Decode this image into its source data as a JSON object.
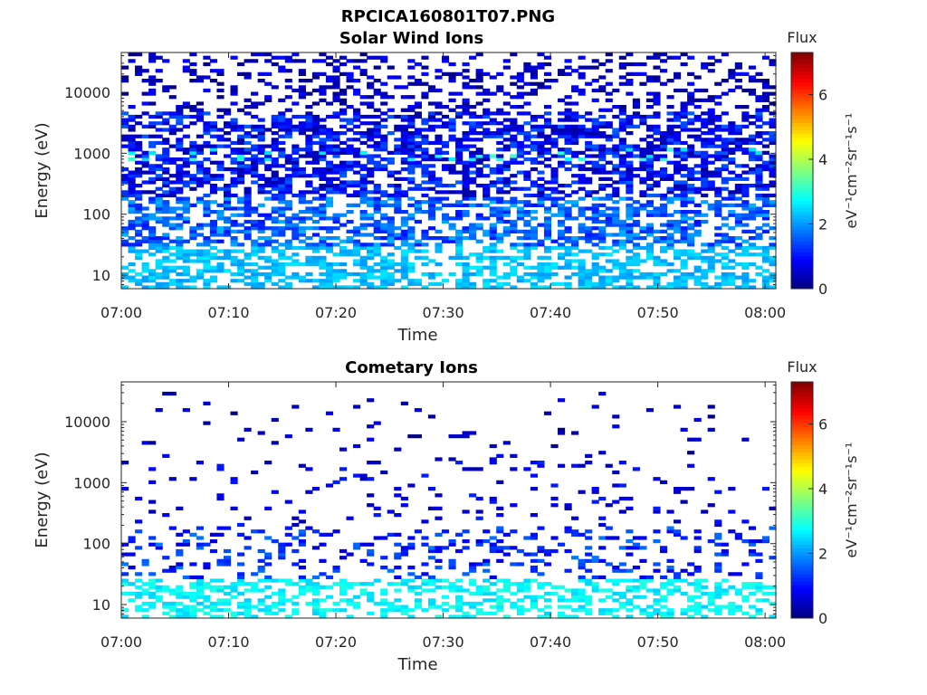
{
  "figure": {
    "title": "RPCICA160801T07.PNG"
  },
  "chart_data": [
    {
      "type": "heatmap",
      "title": "Solar Wind Ions",
      "xlabel": "Time",
      "ylabel": "Energy (eV)",
      "x_range": [
        "07:00",
        "08:01"
      ],
      "x_ticks": [
        "07:00",
        "07:10",
        "07:20",
        "07:30",
        "07:40",
        "07:50",
        "08:00"
      ],
      "y_scale": "log",
      "y_range": [
        6,
        45000
      ],
      "y_ticks": [
        10,
        100,
        1000,
        10000
      ],
      "y_tick_labels": [
        "10",
        "100",
        "1000",
        "10000"
      ],
      "colorbar": {
        "title": "Flux",
        "label": "eV⁻¹cm⁻²sr⁻¹s⁻¹",
        "range": [
          0,
          7.3
        ],
        "ticks": [
          0,
          2,
          4,
          6
        ],
        "tick_labels": [
          "0",
          "2",
          "4",
          "6"
        ],
        "colormap": "jet"
      },
      "profile": {
        "energy_bands": [
          {
            "e_min": 6,
            "e_max": 30,
            "occupancy": 0.55,
            "level": [
              2.0,
              2.6
            ]
          },
          {
            "e_min": 30,
            "e_max": 200,
            "occupancy": 0.55,
            "level": [
              1.0,
              2.2
            ]
          },
          {
            "e_min": 200,
            "e_max": 5000,
            "occupancy": 0.55,
            "level": [
              0.2,
              1.6
            ]
          },
          {
            "e_min": 800,
            "e_max": 1300,
            "occupancy": 0.2,
            "level": [
              2.5,
              3.2
            ]
          },
          {
            "e_min": 5000,
            "e_max": 45000,
            "occupancy": 0.28,
            "level": [
              0.0,
              1.0
            ]
          }
        ]
      }
    },
    {
      "type": "heatmap",
      "title": "Cometary Ions",
      "xlabel": "Time",
      "ylabel": "Energy (eV)",
      "x_range": [
        "07:00",
        "08:01"
      ],
      "x_ticks": [
        "07:00",
        "07:10",
        "07:20",
        "07:30",
        "07:40",
        "07:50",
        "08:00"
      ],
      "y_scale": "log",
      "y_range": [
        6,
        45000
      ],
      "y_ticks": [
        10,
        100,
        1000,
        10000
      ],
      "y_tick_labels": [
        "10",
        "100",
        "1000",
        "10000"
      ],
      "colorbar": {
        "title": "Flux",
        "label": "eV⁻¹cm⁻²sr⁻¹s⁻¹",
        "range": [
          0,
          7.3
        ],
        "ticks": [
          0,
          2,
          4,
          6
        ],
        "tick_labels": [
          "0",
          "2",
          "4",
          "6"
        ],
        "colormap": "jet"
      },
      "profile": {
        "energy_bands": [
          {
            "e_min": 6,
            "e_max": 25,
            "occupancy": 0.45,
            "level": [
              2.4,
              3.0
            ]
          },
          {
            "e_min": 25,
            "e_max": 200,
            "occupancy": 0.22,
            "level": [
              0.6,
              1.8
            ]
          },
          {
            "e_min": 200,
            "e_max": 3000,
            "occupancy": 0.07,
            "level": [
              0.3,
              1.2
            ]
          },
          {
            "e_min": 3000,
            "e_max": 30000,
            "occupancy": 0.03,
            "level": [
              0.0,
              0.8
            ]
          }
        ]
      }
    }
  ]
}
